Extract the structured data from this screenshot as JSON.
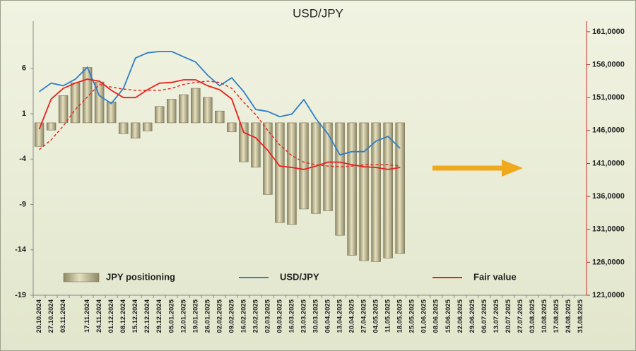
{
  "chart_data": {
    "type": "combo",
    "title": "USD/JPY",
    "categories": [
      "20.10.2024",
      "27.10.2024",
      "03.11.2024",
      null,
      "17.11.2024",
      "24.11.2024",
      "01.12.2024",
      "08.12.2024",
      "15.12.2024",
      "22.12.2024",
      "29.12.2024",
      "05.01.2025",
      "12.01.2025",
      "19.01.2025",
      "26.01.2025",
      "02.02.2025",
      "09.02.2025",
      "16.02.2025",
      "23.02.2025",
      "02.03.2025",
      "09.03.2025",
      "16.03.2025",
      "23.03.2025",
      "30.03.2025",
      "06.04.2025",
      "13.04.2025",
      "20.04.2025",
      "27.04.2025",
      "04.05.2025",
      "11.05.2025",
      "18.05.2025",
      "25.05.2025",
      "01.06.2025",
      "08.06.2025",
      "15.06.2025",
      "22.06.2025",
      "29.06.2025",
      "06.07.2025",
      "13.07.2025",
      "20.07.2025",
      "27.07.2025",
      "03.08.2025",
      "10.08.2025",
      "17.08.2025",
      "24.08.2025",
      "31.08.2025"
    ],
    "series": [
      {
        "name": "JPY positioning",
        "type": "bar",
        "color": "#c6bf98",
        "axis": "y",
        "values": [
          -2.6,
          -0.8,
          3.0,
          4.4,
          6.1,
          4.5,
          2.3,
          -1.2,
          -1.7,
          -0.9,
          1.8,
          2.6,
          3.1,
          3.8,
          2.8,
          1.3,
          -1.0,
          -4.3,
          -4.9,
          -7.9,
          -11.0,
          -11.2,
          -9.5,
          -10.0,
          -9.7,
          -12.4,
          -14.6,
          -15.2,
          -15.3,
          -14.9,
          -14.4,
          null,
          null,
          null,
          null,
          null,
          null,
          null,
          null,
          null,
          null,
          null,
          null,
          null,
          null,
          null
        ]
      },
      {
        "name": "USD/JPY",
        "type": "line",
        "color": "#2e7fc6",
        "axis": "y2",
        "values": [
          151900,
          153200,
          152800,
          153800,
          155600,
          151300,
          150100,
          152400,
          157000,
          157800,
          158000,
          158000,
          157200,
          156400,
          154400,
          152800,
          154000,
          151900,
          149200,
          148900,
          148100,
          148500,
          150700,
          147800,
          145500,
          142300,
          142800,
          142800,
          144400,
          145100,
          143300,
          null,
          null,
          null,
          null,
          null,
          null,
          null,
          null,
          null,
          null,
          null,
          null,
          null,
          null,
          null
        ]
      },
      {
        "name": "Fair value",
        "type": "line",
        "color": "#e8201c",
        "axis": "y2",
        "values": [
          146200,
          150800,
          152400,
          153200,
          153800,
          153500,
          152100,
          151000,
          151000,
          152200,
          153200,
          153300,
          153700,
          153700,
          152800,
          152200,
          150800,
          145700,
          144900,
          143000,
          140600,
          140400,
          140100,
          140600,
          141200,
          141200,
          140800,
          140500,
          140400,
          140100,
          140400,
          null,
          null,
          null,
          null,
          null,
          null,
          null,
          null,
          null,
          null,
          null,
          null,
          null,
          null,
          null
        ]
      },
      {
        "type": "line",
        "dashed": true,
        "color": "#e8201c",
        "axis": "y2",
        "values": [
          143100,
          144600,
          146700,
          149200,
          151100,
          153000,
          152600,
          152300,
          152100,
          152100,
          152100,
          152400,
          153000,
          153300,
          153500,
          153300,
          152400,
          150300,
          148400,
          146000,
          143800,
          142200,
          141200,
          140800,
          140600,
          140500,
          140600,
          140800,
          140800,
          140800,
          140600,
          null,
          null,
          null,
          null,
          null,
          null,
          null,
          null,
          null,
          null,
          null,
          null,
          null,
          null,
          null
        ]
      }
    ],
    "ylim": [
      -19,
      11.2
    ],
    "yticks": [
      -19,
      -14,
      -9,
      -4,
      1,
      6
    ],
    "y2lim": [
      121000,
      162600
    ],
    "y2ticks": [
      {
        "value": 121000,
        "label": "121,0000"
      },
      {
        "value": 126000,
        "label": "126,0000"
      },
      {
        "value": 131000,
        "label": "131,0000"
      },
      {
        "value": 136000,
        "label": "136,0000"
      },
      {
        "value": 141000,
        "label": "141,0000"
      },
      {
        "value": 146000,
        "label": "146,0000"
      },
      {
        "value": 151000,
        "label": "151,0000"
      },
      {
        "value": 156000,
        "label": "156,0000"
      },
      {
        "value": 161000,
        "label": "161,0000"
      }
    ],
    "y2_axis_color": "#cc2a2a"
  }
}
